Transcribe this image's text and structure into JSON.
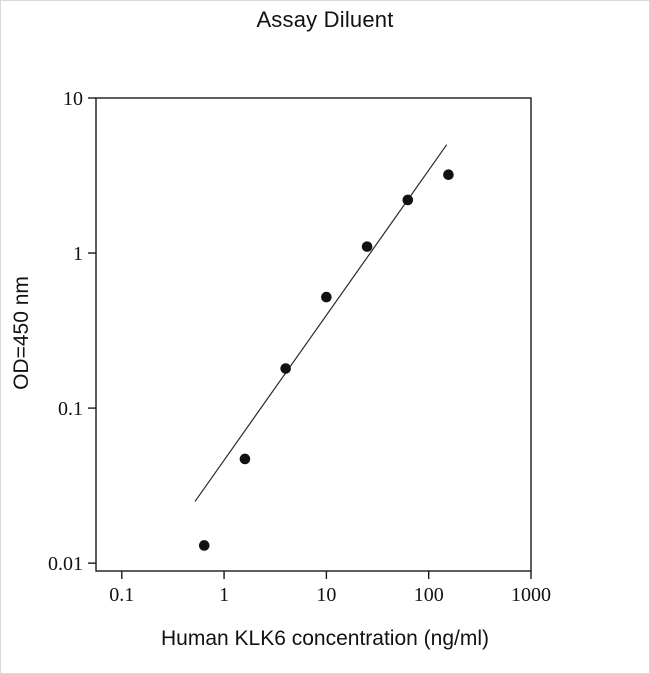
{
  "chart_data": {
    "type": "scatter",
    "title": "Assay Diluent",
    "xlabel": "Human KLK6 concentration (ng/ml)",
    "ylabel": "OD=450 nm",
    "x_scale": "log",
    "y_scale": "log",
    "xlim": [
      0.056,
      1000
    ],
    "ylim": [
      0.0089,
      10
    ],
    "x_ticks": [
      0.1,
      1,
      10,
      100,
      1000
    ],
    "x_tick_labels": [
      "0.1",
      "1",
      "10",
      "100",
      "1000"
    ],
    "y_ticks": [
      0.01,
      0.1,
      1,
      10
    ],
    "y_tick_labels": [
      "0.01",
      "0.1",
      "1",
      "10"
    ],
    "points": [
      [
        0.64,
        0.013
      ],
      [
        1.6,
        0.047
      ],
      [
        4,
        0.18
      ],
      [
        10,
        0.52
      ],
      [
        25,
        1.1
      ],
      [
        62.5,
        2.2
      ],
      [
        156,
        3.2
      ]
    ],
    "fit_line": {
      "x1": 0.52,
      "y1": 0.025,
      "x2": 150,
      "y2": 5.0
    },
    "marker": {
      "shape": "circle",
      "color": "#111111",
      "radius": 5.3
    },
    "line_color": "#2a2a2a",
    "axis_color": "#1a1a1a",
    "grid": false,
    "legend": null
  }
}
